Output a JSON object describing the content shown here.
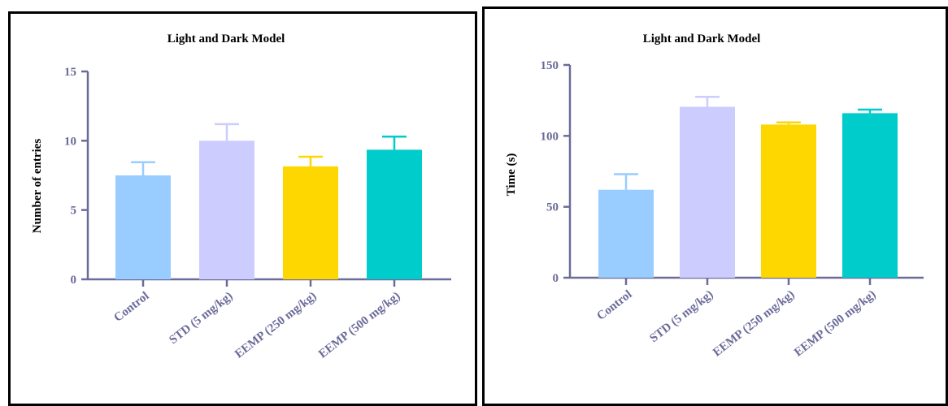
{
  "chart_data": [
    {
      "type": "bar",
      "title": "Light and Dark Model",
      "xlabel": "",
      "ylabel": "Number of entries",
      "ylim": [
        0,
        15
      ],
      "yticks": [
        "0",
        "5",
        "10",
        "15"
      ],
      "categories": [
        "Control",
        "STD (5 mg/kg)",
        "EEMP (250 mg/kg)",
        "EEMP (500 mg/kg)"
      ],
      "values": [
        7.5,
        10.0,
        8.15,
        9.35
      ],
      "error": [
        0.95,
        1.2,
        0.7,
        0.95
      ],
      "colors": [
        "#99ccff",
        "#ccccff",
        "#ffd700",
        "#00cccc"
      ],
      "grid": false,
      "legend": "none"
    },
    {
      "type": "bar",
      "title": "Light and Dark Model",
      "xlabel": "",
      "ylabel": "Time (s)",
      "ylim": [
        0,
        150
      ],
      "yticks": [
        "0",
        "50",
        "100",
        "150"
      ],
      "categories": [
        "Control",
        "STD (5 mg/kg)",
        "EEMP (250 mg/kg)",
        "EEMP (500 mg/kg)"
      ],
      "values": [
        62,
        120.5,
        108,
        116
      ],
      "error": [
        11,
        7,
        1.5,
        2.5
      ],
      "colors": [
        "#99ccff",
        "#ccccff",
        "#ffd700",
        "#00cccc"
      ],
      "grid": false,
      "legend": "none"
    }
  ]
}
